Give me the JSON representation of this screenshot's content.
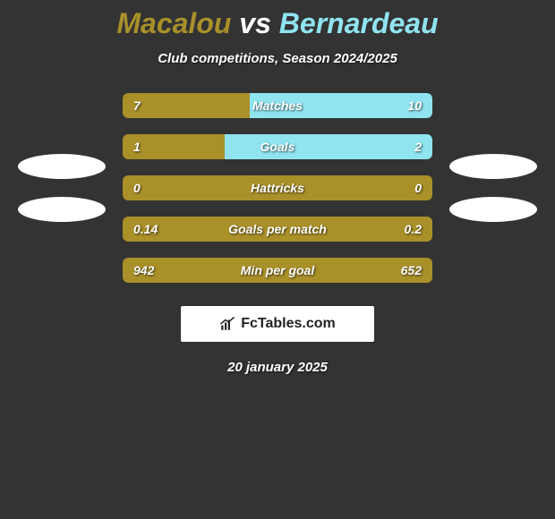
{
  "background_color": "#333333",
  "title": {
    "player1": "Macalou",
    "vs": "vs",
    "player2": "Bernardeau",
    "color_p1": "#a99029",
    "color_vs": "#ffffff",
    "color_p2": "#8fe4f0",
    "fontsize": 32
  },
  "subtitle": "Club competitions, Season 2024/2025",
  "player1_color": "#a99029",
  "player2_color": "#8fe4f0",
  "bar_bg": "#2b2b2b",
  "rows": [
    {
      "label": "Matches",
      "left_val": "7",
      "right_val": "10",
      "left_pct": 41,
      "right_pct": 59
    },
    {
      "label": "Goals",
      "left_val": "1",
      "right_val": "2",
      "left_pct": 33,
      "right_pct": 67
    },
    {
      "label": "Hattricks",
      "left_val": "0",
      "right_val": "0",
      "left_pct": 100,
      "right_pct": 0
    },
    {
      "label": "Goals per match",
      "left_val": "0.14",
      "right_val": "0.2",
      "left_pct": 100,
      "right_pct": 0
    },
    {
      "label": "Min per goal",
      "left_val": "942",
      "right_val": "652",
      "left_pct": 100,
      "right_pct": 0
    }
  ],
  "side_placeholders": {
    "left_count": 2,
    "right_count": 2,
    "ellipse_color": "#ffffff"
  },
  "logo": {
    "text": "FcTables.com",
    "bg": "#ffffff",
    "text_color": "#222222"
  },
  "date": "20 january 2025"
}
